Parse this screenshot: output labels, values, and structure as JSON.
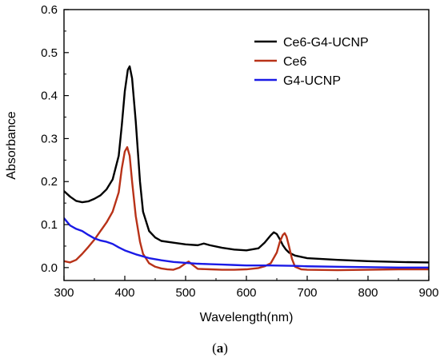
{
  "chart_data": {
    "type": "line",
    "title": "",
    "xlabel": "Wavelength(nm)",
    "ylabel": "Absorbance",
    "xlim": [
      300,
      900
    ],
    "ylim": [
      -0.03,
      0.6
    ],
    "xticks": [
      300,
      400,
      500,
      600,
      700,
      800,
      900
    ],
    "xtick_labels": [
      "300",
      "400",
      "500",
      "600",
      "700",
      "800",
      "900"
    ],
    "yticks": [
      0.0,
      0.1,
      0.2,
      0.3,
      0.4,
      0.5,
      0.6
    ],
    "ytick_labels": [
      "0.0",
      "0.1",
      "0.2",
      "0.3",
      "0.4",
      "0.5",
      "0.6"
    ],
    "grid": false,
    "legend": "top-right",
    "series": [
      {
        "name": "Ce6-G4-UCNP",
        "color": "#000000",
        "x": [
          300,
          310,
          320,
          330,
          340,
          350,
          360,
          370,
          380,
          390,
          395,
          400,
          405,
          408,
          412,
          418,
          425,
          430,
          440,
          450,
          460,
          480,
          500,
          520,
          530,
          540,
          560,
          580,
          600,
          620,
          630,
          640,
          645,
          650,
          655,
          660,
          665,
          670,
          680,
          700,
          750,
          800,
          850,
          900
        ],
        "y": [
          0.178,
          0.165,
          0.155,
          0.152,
          0.154,
          0.16,
          0.168,
          0.182,
          0.205,
          0.26,
          0.33,
          0.41,
          0.46,
          0.468,
          0.44,
          0.34,
          0.2,
          0.13,
          0.085,
          0.07,
          0.062,
          0.058,
          0.054,
          0.052,
          0.056,
          0.052,
          0.046,
          0.042,
          0.04,
          0.045,
          0.058,
          0.075,
          0.082,
          0.078,
          0.066,
          0.052,
          0.042,
          0.035,
          0.028,
          0.022,
          0.018,
          0.015,
          0.013,
          0.012
        ]
      },
      {
        "name": "Ce6",
        "color": "#b83218",
        "x": [
          300,
          310,
          320,
          330,
          340,
          350,
          360,
          370,
          380,
          390,
          395,
          400,
          404,
          408,
          412,
          418,
          425,
          430,
          440,
          450,
          460,
          470,
          480,
          490,
          500,
          505,
          510,
          520,
          540,
          560,
          580,
          600,
          620,
          630,
          640,
          650,
          655,
          660,
          663,
          666,
          670,
          675,
          680,
          690,
          700,
          750,
          800,
          850,
          900
        ],
        "y": [
          0.015,
          0.012,
          0.018,
          0.032,
          0.048,
          0.065,
          0.085,
          0.105,
          0.13,
          0.175,
          0.23,
          0.27,
          0.28,
          0.26,
          0.2,
          0.12,
          0.06,
          0.032,
          0.01,
          0.002,
          -0.002,
          -0.004,
          -0.005,
          0.0,
          0.01,
          0.014,
          0.008,
          -0.003,
          -0.004,
          -0.005,
          -0.005,
          -0.004,
          -0.001,
          0.003,
          0.01,
          0.035,
          0.06,
          0.076,
          0.08,
          0.072,
          0.05,
          0.02,
          0.002,
          -0.004,
          -0.005,
          -0.006,
          -0.005,
          -0.004,
          -0.004
        ]
      },
      {
        "name": "G4-UCNP",
        "color": "#1a1ae6",
        "x": [
          300,
          310,
          320,
          330,
          340,
          350,
          360,
          370,
          380,
          390,
          400,
          420,
          440,
          460,
          480,
          500,
          520,
          540,
          560,
          580,
          600,
          640,
          680,
          700,
          750,
          800,
          850,
          900
        ],
        "y": [
          0.115,
          0.098,
          0.09,
          0.085,
          0.076,
          0.068,
          0.063,
          0.06,
          0.055,
          0.047,
          0.04,
          0.03,
          0.022,
          0.017,
          0.013,
          0.011,
          0.009,
          0.008,
          0.007,
          0.006,
          0.005,
          0.005,
          0.004,
          0.003,
          0.002,
          0.001,
          0.0,
          0.0
        ]
      }
    ]
  },
  "caption": {
    "open": "(",
    "letter": "a",
    "close": ")"
  }
}
